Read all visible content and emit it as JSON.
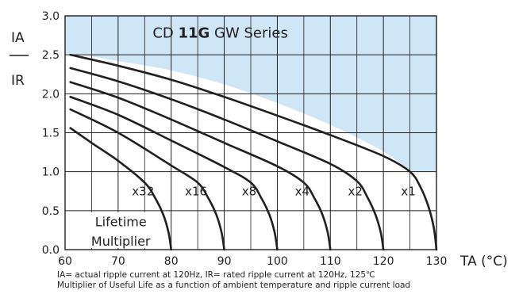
{
  "chart_data": {
    "type": "line",
    "title": "CD 11G GW Series",
    "title_parts": [
      "CD ",
      "11G",
      " GW Series"
    ],
    "ylabel_top": "IA",
    "ylabel_bottom": "IR",
    "xlabel": "TA (°C)",
    "xlim": [
      60,
      130
    ],
    "ylim": [
      0,
      3.0
    ],
    "xticks": [
      60,
      70,
      80,
      90,
      100,
      110,
      120,
      130
    ],
    "x_tick_labels": [
      "60",
      "70",
      "80",
      "90",
      "100",
      "110",
      "120",
      "130"
    ],
    "yticks": [
      0,
      0.5,
      1.0,
      1.5,
      2.0,
      2.5,
      3.0
    ],
    "y_tick_labels": [
      "0.0",
      "0.5",
      "1.0",
      "1.5",
      "2.0",
      "2.5",
      "3.0"
    ],
    "grid": true,
    "shaded_region_color": "#cfe6f6",
    "line_color": "#231f20",
    "annotation": [
      "Lifetime",
      "Multiplier"
    ],
    "series": [
      {
        "name": "x1",
        "x": [
          61,
          70,
          80,
          90,
          100,
          110,
          120,
          125,
          127,
          128.5,
          129.5,
          130
        ],
        "y": [
          2.5,
          2.36,
          2.18,
          1.96,
          1.72,
          1.47,
          1.2,
          1.0,
          0.8,
          0.55,
          0.28,
          0.0
        ]
      },
      {
        "name": "x2",
        "x": [
          61,
          70,
          80,
          90,
          100,
          110,
          115,
          117,
          118.5,
          119.5,
          120
        ],
        "y": [
          2.33,
          2.16,
          1.93,
          1.67,
          1.39,
          1.1,
          0.88,
          0.67,
          0.45,
          0.22,
          0.0
        ]
      },
      {
        "name": "x4",
        "x": [
          61,
          70,
          80,
          90,
          100,
          105,
          107,
          108.5,
          109.5,
          110
        ],
        "y": [
          2.15,
          1.95,
          1.67,
          1.37,
          1.07,
          0.86,
          0.66,
          0.45,
          0.22,
          0.0
        ]
      },
      {
        "name": "x8",
        "x": [
          61,
          70,
          80,
          90,
          95,
          97,
          98.5,
          99.5,
          100
        ],
        "y": [
          1.96,
          1.73,
          1.4,
          1.06,
          0.86,
          0.66,
          0.45,
          0.22,
          0.0
        ]
      },
      {
        "name": "x16",
        "x": [
          61,
          70,
          80,
          85,
          87,
          88.5,
          89.5,
          90
        ],
        "y": [
          1.8,
          1.5,
          1.08,
          0.86,
          0.66,
          0.45,
          0.22,
          0.0
        ]
      },
      {
        "name": "x32",
        "x": [
          61,
          65,
          70,
          75,
          77,
          78.5,
          79.5,
          80
        ],
        "y": [
          1.56,
          1.37,
          1.14,
          0.86,
          0.66,
          0.45,
          0.22,
          0.0
        ]
      }
    ],
    "shaded_boundary": {
      "x": [
        61,
        63,
        70,
        80,
        90,
        100,
        110,
        120,
        125
      ],
      "y": [
        2.5,
        2.5,
        2.42,
        2.3,
        2.12,
        1.88,
        1.6,
        1.26,
        1.0
      ]
    }
  },
  "notes": [
    "IA= actual ripple current at 120Hz, IR= rated ripple current at 120Hz, 125℃",
    "Multiplier of Useful Life as a function of ambient temperature and ripple current load"
  ]
}
